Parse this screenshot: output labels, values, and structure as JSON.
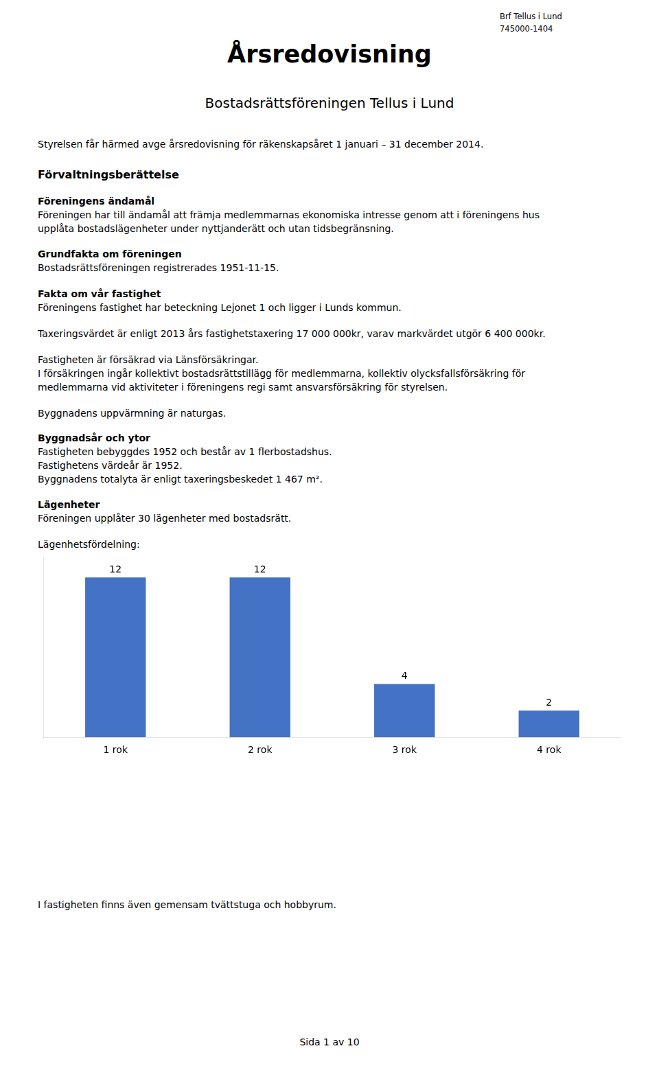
{
  "chart_data": {
    "type": "bar",
    "title": "Lägenhetsfördelning:",
    "annotations": [
      "Brf Tellus i Lund",
      "745000-1404",
      "Årsredovisning",
      "Bostadsrättsföreningen Tellus i Lund",
      "Styrelsen får härmed avge årsredovisning för räkenskapsåret 1 januari – 31 december 2014.",
      "Förvaltningsberättelse",
      "Föreningens ändamål",
      "Föreningen har till ändamål att främja medlemmarnas ekonomiska intresse genom att i föreningens hus",
      "upplåta bostadslägenheter under nyttjanderätt och utan tidsbegränsning.",
      "Grundfakta om föreningen",
      "Bostadsrättsföreningen registrerades 1951-11-15.",
      "Fakta om vår fastighet",
      "Föreningens fastighet har beteckning Lejonet 1 och ligger i Lunds kommun.",
      "Taxeringsvärdet är enligt 2013 års fastighetstaxering 17 000 000kr, varav markvärdet utgör 6 400 000kr.",
      "Fastigheten är försäkrad via Länsförsäkringar.",
      "I försäkringen ingår kollektivt bostadsrättstillägg för medlemmarna, kollektiv olycksfallsförsäkring för",
      "medlemmarna vid aktiviteter i föreningens regi samt ansvarsförsäkring för styrelsen.",
      "Byggnadens uppvärmning är naturgas.",
      "Byggnadsår och ytor",
      "Fastigheten bebyggdes 1952 och består av 1 flerbostadshus.",
      "Fastighetens värdeår är 1952.",
      "Byggnadens totalyta är enligt taxeringsbeskedet 1 467 m².",
      "Lägenheter",
      "Föreningen upplåter 30 lägenheter med bostadsrätt.",
      "I fastigheten finns även gemensam tvättstuga och hobbyrum.",
      "Sida 1 av 10"
    ],
    "categories": [
      "1 rok",
      "2 rok",
      "3 rok",
      "4 rok"
    ],
    "values": [
      12,
      12,
      4,
      2
    ],
    "color": "#4472C4",
    "ylim": [
      0,
      13.5
    ],
    "grid": false,
    "data_labels": true,
    "tick_labels": "x"
  }
}
